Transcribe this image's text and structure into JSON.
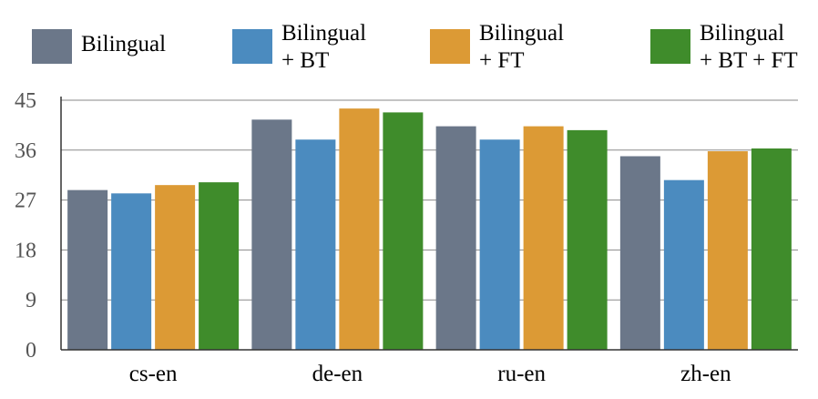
{
  "chart_data": {
    "type": "bar",
    "categories": [
      "cs-en",
      "de-en",
      "ru-en",
      "zh-en"
    ],
    "series": [
      {
        "name": "Bilingual",
        "color": "#6b7789",
        "values": [
          28.8,
          41.5,
          40.3,
          34.9
        ]
      },
      {
        "name": "Bilingual\n+ BT",
        "color": "#4b8bbf",
        "values": [
          28.2,
          37.9,
          37.9,
          30.6
        ]
      },
      {
        "name": "Bilingual\n+ FT",
        "color": "#dc9a35",
        "values": [
          29.7,
          43.5,
          40.3,
          35.8
        ]
      },
      {
        "name": "Bilingual\n+ BT + FT",
        "color": "#3f8c2b",
        "values": [
          30.2,
          42.8,
          39.6,
          36.3
        ]
      }
    ],
    "yticks": [
      0,
      9,
      18,
      27,
      36,
      45
    ],
    "ylim": [
      0,
      45
    ],
    "grid": true,
    "legend_position": "top"
  }
}
